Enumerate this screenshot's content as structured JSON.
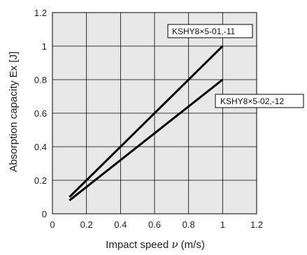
{
  "chart_data": {
    "type": "line",
    "xlabel_prefix": "Impact speed ",
    "xlabel_var": "ν",
    "xlabel_suffix": " (m/s)",
    "ylabel": "Absorption capacity Ex [J]",
    "xlim": [
      0,
      1.2
    ],
    "ylim": [
      0,
      1.2
    ],
    "x_ticks": [
      "0",
      "0.2",
      "0.4",
      "0.6",
      "0.8",
      "1",
      "1.2"
    ],
    "y_ticks": [
      "0",
      "0.2",
      "0.4",
      "0.6",
      "0.8",
      "1",
      "1.2"
    ],
    "grid": true,
    "background": "#e8e8e8",
    "line_color": "#000000",
    "series": [
      {
        "name": "KSHY8×5-01,-11",
        "x": [
          0.1,
          1.0
        ],
        "y": [
          0.1,
          1.0
        ]
      },
      {
        "name": "KSHY8×5-02,-12",
        "x": [
          0.1,
          1.0
        ],
        "y": [
          0.08,
          0.8
        ]
      }
    ]
  }
}
